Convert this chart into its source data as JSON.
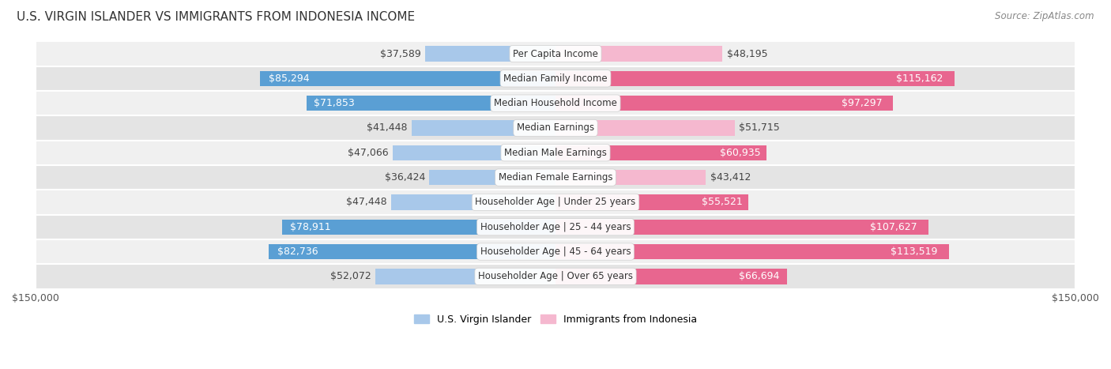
{
  "title": "U.S. VIRGIN ISLANDER VS IMMIGRANTS FROM INDONESIA INCOME",
  "source": "Source: ZipAtlas.com",
  "categories": [
    "Per Capita Income",
    "Median Family Income",
    "Median Household Income",
    "Median Earnings",
    "Median Male Earnings",
    "Median Female Earnings",
    "Householder Age | Under 25 years",
    "Householder Age | 25 - 44 years",
    "Householder Age | 45 - 64 years",
    "Householder Age | Over 65 years"
  ],
  "left_values": [
    37589,
    85294,
    71853,
    41448,
    47066,
    36424,
    47448,
    78911,
    82736,
    52072
  ],
  "right_values": [
    48195,
    115162,
    97297,
    51715,
    60935,
    43412,
    55521,
    107627,
    113519,
    66694
  ],
  "left_labels": [
    "$37,589",
    "$85,294",
    "$71,853",
    "$41,448",
    "$47,066",
    "$36,424",
    "$47,448",
    "$78,911",
    "$82,736",
    "$52,072"
  ],
  "right_labels": [
    "$48,195",
    "$115,162",
    "$97,297",
    "$51,715",
    "$60,935",
    "$43,412",
    "$55,521",
    "$107,627",
    "$113,519",
    "$66,694"
  ],
  "left_color_light": "#a8c8ea",
  "left_color_dark": "#5a9fd4",
  "right_color_light": "#f5b8cf",
  "right_color_dark": "#e8668f",
  "max_val": 150000,
  "legend_left": "U.S. Virgin Islander",
  "legend_right": "Immigrants from Indonesia",
  "row_bg_even": "#f0f0f0",
  "row_bg_odd": "#e4e4e4",
  "label_fontsize": 9,
  "title_fontsize": 11,
  "category_fontsize": 8.5,
  "threshold_dark_bar": 55000,
  "white_text_threshold": 55000
}
